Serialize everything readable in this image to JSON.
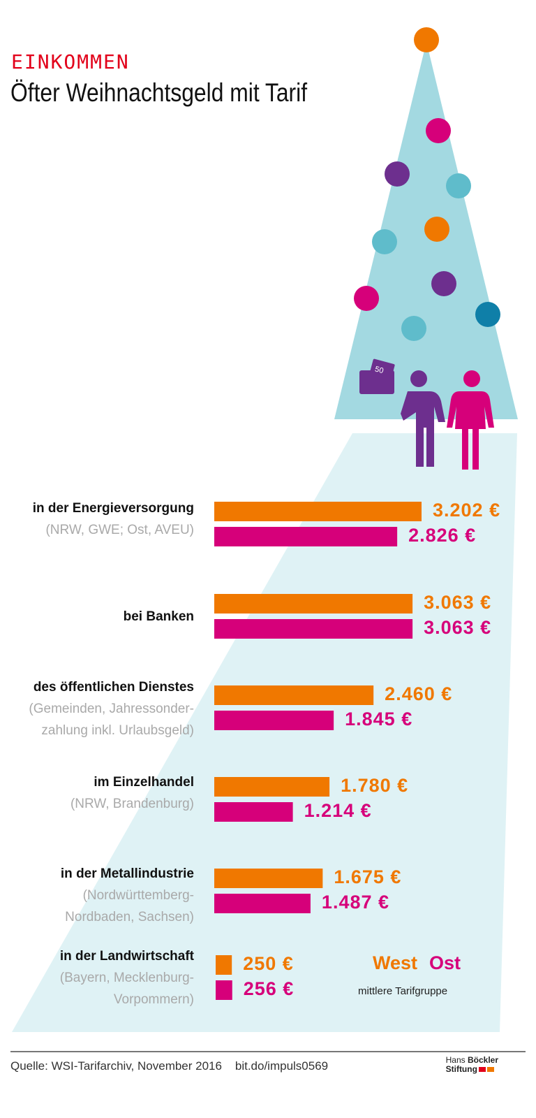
{
  "header": {
    "kicker": "EINKOMMEN",
    "title": "Öfter Weihnachtsgeld mit Tarif"
  },
  "colors": {
    "west": "#f07800",
    "ost": "#d6007a",
    "tree": "#a3d9e1",
    "beam": "#dff2f5",
    "kicker": "#e2001a"
  },
  "icons": [
    "christmas-tree-icon",
    "ornament-icon",
    "man-with-wallet-icon",
    "woman-icon",
    "wallet-icon"
  ],
  "chart_data": {
    "type": "bar",
    "orientation": "horizontal",
    "title": "Öfter Weihnachtsgeld mit Tarif",
    "unit": "€",
    "categories": [
      {
        "label": "in der Energieversorgung",
        "sub": [
          "(NRW, GWE; Ost, AVEU)"
        ]
      },
      {
        "label": "bei Banken",
        "sub": []
      },
      {
        "label": "des öffentlichen Dienstes",
        "sub": [
          "(Gemeinden, Jahressonder-",
          "zahlung inkl. Urlaubsgeld)"
        ]
      },
      {
        "label": "im Einzelhandel",
        "sub": [
          "(NRW, Brandenburg)"
        ]
      },
      {
        "label": "in der Metallindustrie",
        "sub": [
          "(Nordwürttemberg-",
          "Nordbaden, Sachsen)"
        ]
      },
      {
        "label": "in der Landwirtschaft",
        "sub": [
          "(Bayern, Mecklenburg-",
          "Vorpommern)"
        ]
      }
    ],
    "series": [
      {
        "name": "West",
        "values": [
          3202,
          3063,
          2460,
          1780,
          1675,
          250
        ],
        "labels": [
          "3.202 €",
          "3.063 €",
          "2.460 €",
          "1.780 €",
          "1.675 €",
          "250 €"
        ]
      },
      {
        "name": "Ost",
        "values": [
          2826,
          3063,
          1845,
          1214,
          1487,
          256
        ],
        "labels": [
          "2.826 €",
          "3.063 €",
          "1.845 €",
          "1.214 €",
          "1.487 €",
          "256 €"
        ]
      }
    ],
    "legend_note": "mittlere Tarifgruppe",
    "legend_placement": "bottom-right",
    "grid": false
  },
  "footer": {
    "source": "Quelle: WSI-Tarifarchiv, November 2016",
    "link": "bit.do/impuls0569",
    "logo_line1a": "Hans",
    "logo_line1b": "Böckler",
    "logo_line2": "Stiftung"
  }
}
